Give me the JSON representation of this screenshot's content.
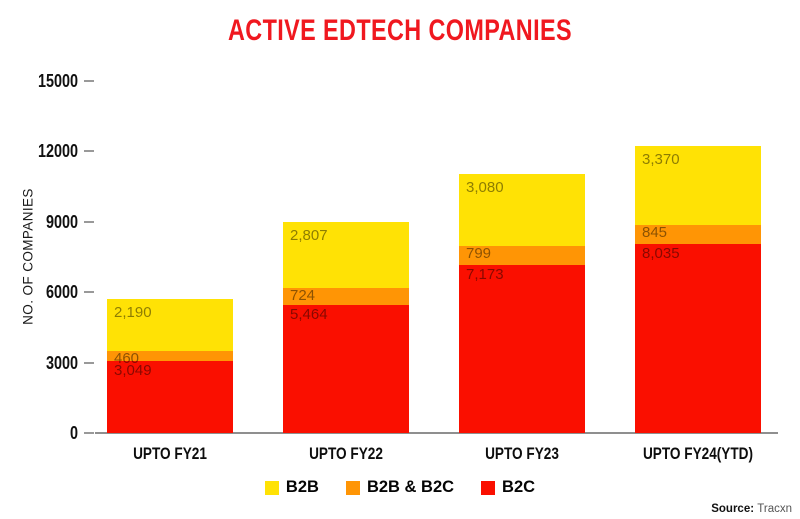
{
  "header": {
    "title": "ACTIVE EDTECH COMPANIES"
  },
  "source": {
    "label": "Source:",
    "value": "Tracxn"
  },
  "chart_data": {
    "type": "bar",
    "stacked": true,
    "title": "ACTIVE EDTECH COMPANIES",
    "xlabel": "",
    "ylabel": "NO. OF COMPANIES",
    "ylim": [
      0,
      15000
    ],
    "y_ticks": [
      0,
      3000,
      6000,
      9000,
      12000,
      15000
    ],
    "grid": false,
    "legend_position": "bottom",
    "categories": [
      "UPTO FY21",
      "UPTO FY22",
      "UPTO FY23",
      "UPTO FY24(YTD)"
    ],
    "series": [
      {
        "name": "B2C",
        "color": "#FA0F00",
        "values": [
          3049,
          5464,
          7173,
          8035
        ],
        "value_labels": [
          "3,049",
          "5,464",
          "7,173",
          "8,035"
        ]
      },
      {
        "name": "B2B & B2C",
        "color": "#FF9505",
        "values": [
          460,
          724,
          799,
          845
        ],
        "value_labels": [
          "460",
          "724",
          "799",
          "845"
        ]
      },
      {
        "name": "B2B",
        "color": "#FFE205",
        "values": [
          2190,
          2807,
          3080,
          3370
        ],
        "value_labels": [
          "2,190",
          "2,807",
          "3,080",
          "3,370"
        ]
      }
    ],
    "legend": [
      {
        "label": "B2B",
        "color": "#FFE205"
      },
      {
        "label": "B2B & B2C",
        "color": "#FF9505"
      },
      {
        "label": "B2C",
        "color": "#FA0F00"
      }
    ],
    "colors": {
      "title": "#F0181F",
      "axis_line": "#8F8F8F",
      "tick": "#999999",
      "value_label": "rgba(0,0,0,0.45)"
    }
  }
}
